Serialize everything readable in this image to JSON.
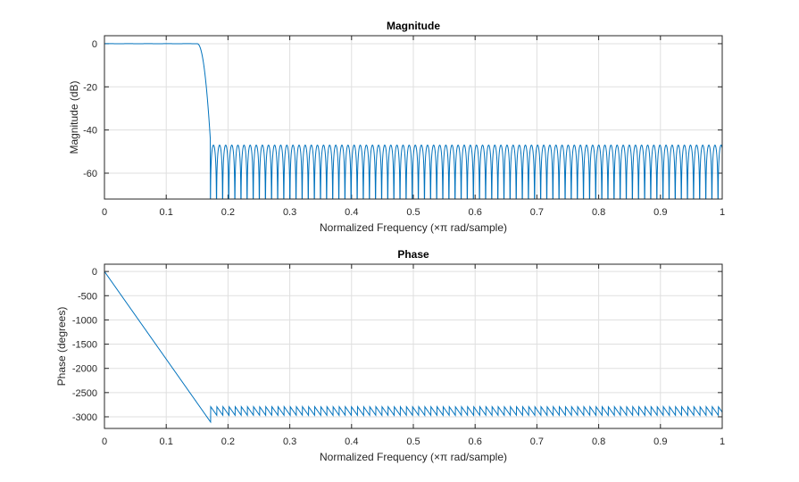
{
  "chart_data": [
    {
      "type": "line",
      "title": "Magnitude",
      "xlabel": "Normalized  Frequency    (×π  rad/sample)",
      "ylabel": "Magnitude (dB)",
      "xlim": [
        0,
        1
      ],
      "ylim": [
        -72,
        3.7
      ],
      "xticks": [
        "0",
        "0.1",
        "0.2",
        "0.3",
        "0.4",
        "0.5",
        "0.6",
        "0.7",
        "0.8",
        "0.9",
        "1"
      ],
      "yticks": [
        "0",
        "-20",
        "-40",
        "-60"
      ],
      "ytick_values": [
        0,
        -20,
        -40,
        -60
      ],
      "grid": true,
      "color": "#0072BD",
      "model": {
        "passband_edge": 0.15,
        "stopband_edge": 0.172,
        "passband_level_db": 0,
        "stopband_peak_db": -47,
        "null_spacing": 0.0099
      }
    },
    {
      "type": "line",
      "title": "Phase",
      "xlabel": "Normalized  Frequency    (×π  rad/sample)",
      "ylabel": "Phase (degrees)",
      "xlim": [
        0,
        1
      ],
      "ylim": [
        -3240,
        150
      ],
      "xticks": [
        "0",
        "0.1",
        "0.2",
        "0.3",
        "0.4",
        "0.5",
        "0.6",
        "0.7",
        "0.8",
        "0.9",
        "1"
      ],
      "yticks": [
        "0",
        "-500",
        "-1000",
        "-1500",
        "-2000",
        "-2500",
        "-3000"
      ],
      "ytick_values": [
        0,
        -500,
        -1000,
        -1500,
        -2000,
        -2500,
        -3000
      ],
      "grid": true,
      "color": "#0072BD",
      "model": {
        "group_delay_samples": 100.5,
        "stopband_edge": 0.172,
        "stopband_phase_max": -2790,
        "stopband_phase_min": -2970,
        "null_spacing": 0.0099
      }
    }
  ]
}
